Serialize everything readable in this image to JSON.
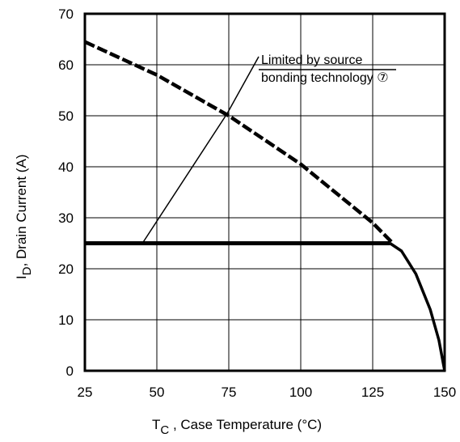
{
  "chart_data": {
    "type": "line",
    "title": "",
    "xlabel": {
      "symbol": "T",
      "subscript": "C",
      "text": " , Case Temperature (°C)"
    },
    "ylabel": {
      "symbol": "I",
      "subscript": "D",
      "text": ",  Drain Current (A)"
    },
    "xlim": [
      25,
      150
    ],
    "ylim": [
      0,
      70
    ],
    "xticks": [
      25,
      50,
      75,
      100,
      125,
      150
    ],
    "yticks": [
      0,
      10,
      20,
      30,
      40,
      50,
      60,
      70
    ],
    "grid": true,
    "series": [
      {
        "style": "dashed",
        "x": [
          25,
          50,
          75,
          100,
          125,
          132
        ],
        "y": [
          64.5,
          58.0,
          50.0,
          40.5,
          29.0,
          25.0
        ]
      },
      {
        "style": "solid",
        "x": [
          25,
          50,
          75,
          100,
          125,
          131
        ],
        "y": [
          25,
          25,
          25,
          25,
          25,
          25
        ]
      },
      {
        "style": "solid",
        "x": [
          131,
          135,
          140,
          145,
          148,
          150
        ],
        "y": [
          25,
          23.5,
          19,
          12,
          6,
          0
        ]
      }
    ],
    "annotation": {
      "lines": [
        "Limited by source",
        "bonding technology ⑦"
      ],
      "arrow_targets": [
        [
          74.5,
          50.5
        ],
        [
          45,
          25
        ]
      ]
    }
  }
}
